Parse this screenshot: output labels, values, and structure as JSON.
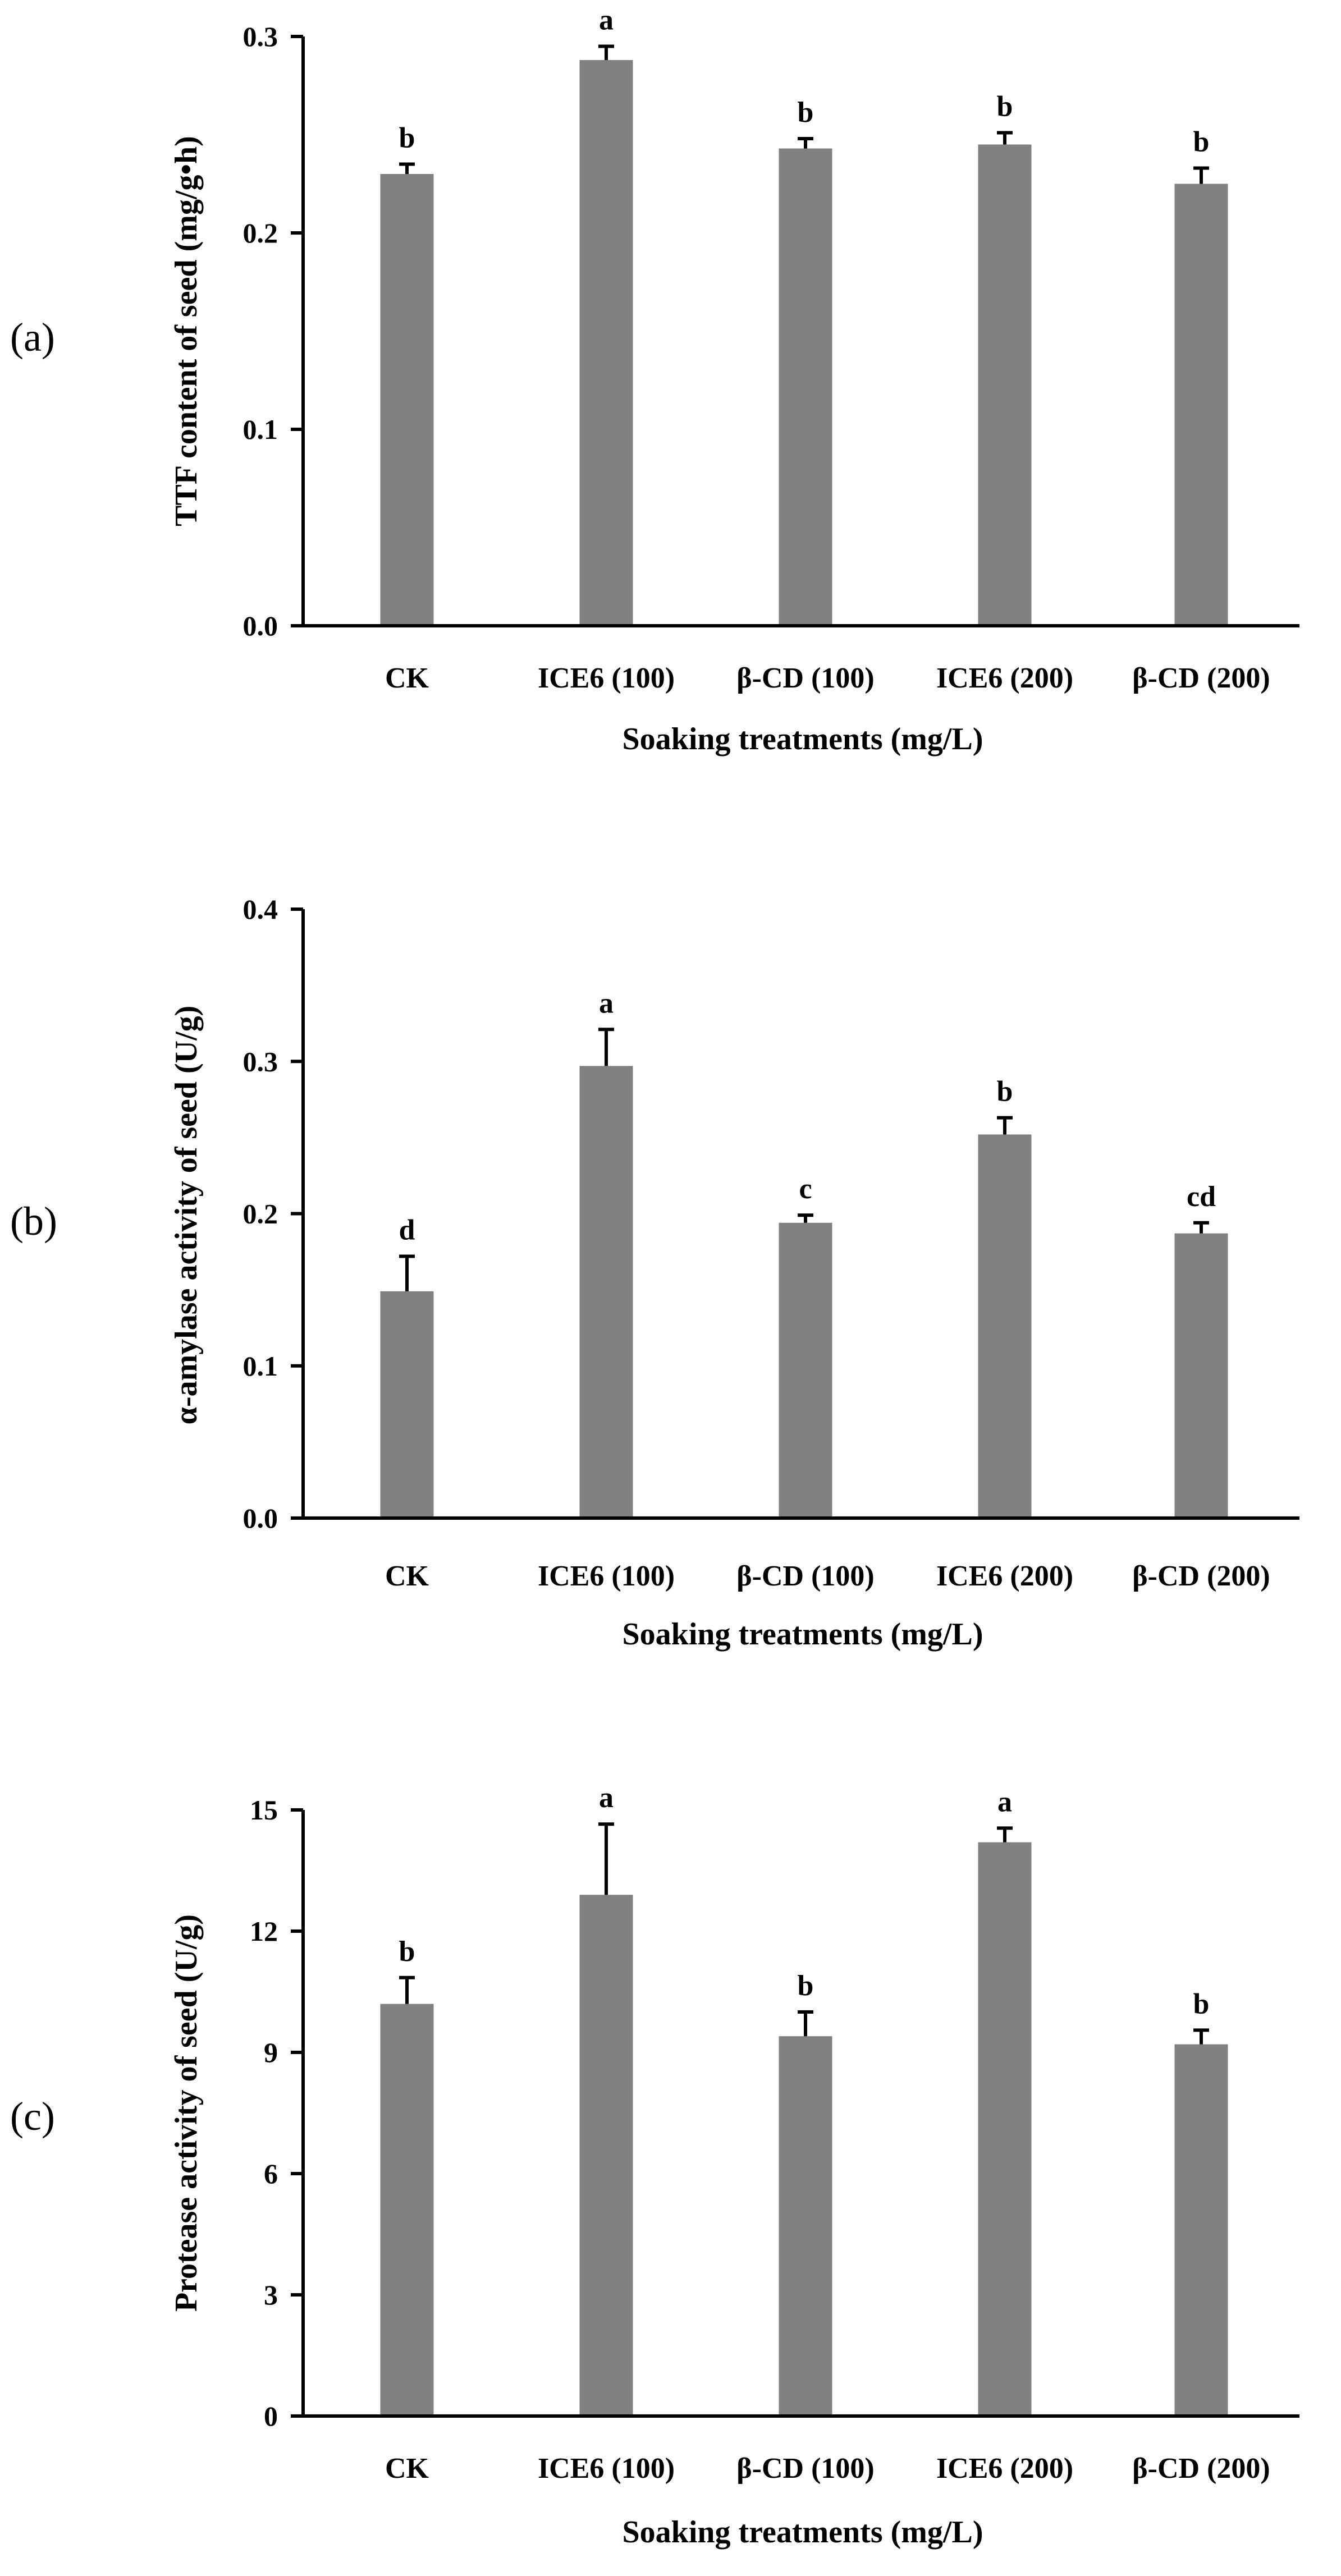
{
  "chart_data": [
    {
      "type": "bar",
      "panel": "(a)",
      "categories": [
        "CK",
        "ICE6 (100)",
        "β-CD (100)",
        "ICE6 (200)",
        "β-CD (200)"
      ],
      "values": [
        0.23,
        0.288,
        0.243,
        0.245,
        0.225
      ],
      "errors": [
        0.005,
        0.007,
        0.005,
        0.006,
        0.008
      ],
      "significance": [
        "b",
        "a",
        "b",
        "b",
        "b"
      ],
      "ylabel": "TTF content of seed  (mg/g•h)",
      "xlabel": "Soaking treatments  (mg/L)",
      "ylim": [
        0,
        0.3
      ],
      "yticks": [
        "0.0",
        "0.1",
        "0.2",
        "0.3"
      ]
    },
    {
      "type": "bar",
      "panel": "(b)",
      "categories": [
        "CK",
        "ICE6 (100)",
        "β-CD (100)",
        "ICE6 (200)",
        "β-CD (200)"
      ],
      "values": [
        0.149,
        0.297,
        0.194,
        0.252,
        0.187
      ],
      "errors": [
        0.023,
        0.024,
        0.005,
        0.011,
        0.007
      ],
      "significance": [
        "d",
        "a",
        "c",
        "b",
        "cd"
      ],
      "ylabel": "α-amylase activity of seed (U/g)",
      "xlabel": "Soaking treatments  (mg/L)",
      "ylim": [
        0,
        0.4
      ],
      "yticks": [
        "0.0",
        "0.1",
        "0.2",
        "0.3",
        "0.4"
      ]
    },
    {
      "type": "bar",
      "panel": "(c)",
      "categories": [
        "CK",
        "ICE6 (100)",
        "β-CD (100)",
        "ICE6 (200)",
        "β-CD (200)"
      ],
      "values": [
        10.2,
        12.9,
        9.4,
        14.2,
        9.2
      ],
      "errors": [
        0.65,
        1.75,
        0.6,
        0.35,
        0.35
      ],
      "significance": [
        "b",
        "a",
        "b",
        "a",
        "b"
      ],
      "ylabel": "Protease activity of seed  (U/g)",
      "xlabel": "Soaking treatments  (mg/L)",
      "ylim": [
        0,
        15
      ],
      "yticks": [
        "0",
        "3",
        "6",
        "9",
        "12",
        "15"
      ]
    }
  ]
}
